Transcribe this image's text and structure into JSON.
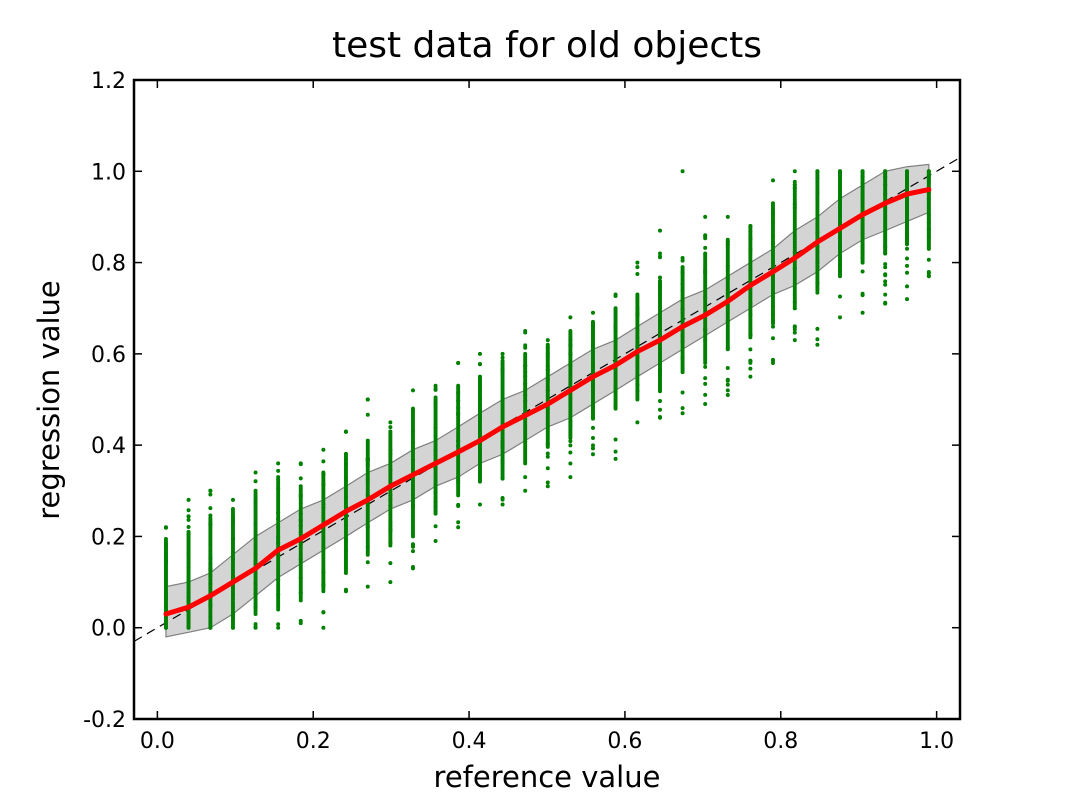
{
  "chart_data": {
    "type": "scatter",
    "title": "test data for old objects",
    "xlabel": "reference value",
    "ylabel": "regression value",
    "xlim": [
      -0.03,
      1.03
    ],
    "ylim": [
      -0.2,
      1.2
    ],
    "x_ticks": [
      0.0,
      0.2,
      0.4,
      0.6,
      0.8,
      1.0
    ],
    "x_tick_labels": [
      "0.0",
      "0.2",
      "0.4",
      "0.6",
      "0.8",
      "1.0"
    ],
    "y_ticks": [
      -0.2,
      0.0,
      0.2,
      0.4,
      0.6,
      0.8,
      1.0,
      1.2
    ],
    "y_tick_labels": [
      "-0.2",
      "0.0",
      "0.2",
      "0.4",
      "0.6",
      "0.8",
      "1.0",
      "1.2"
    ],
    "grid": false,
    "colors": {
      "points": "#008000",
      "mean_line": "#ff0000",
      "band_fill": "#b8b8b8",
      "band_edge": "#808080",
      "identity_line": "#000000"
    },
    "reference_line": {
      "x": [
        -0.03,
        1.03
      ],
      "y": [
        -0.03,
        1.03
      ],
      "style": "dashed"
    },
    "scatter_columns": [
      {
        "x": 0.011,
        "ymin": 0.0,
        "ymax": 0.22,
        "core_min": 0.0,
        "core_max": 0.19
      },
      {
        "x": 0.04,
        "ymin": 0.0,
        "ymax": 0.28,
        "core_min": 0.0,
        "core_max": 0.21
      },
      {
        "x": 0.068,
        "ymin": 0.0,
        "ymax": 0.3,
        "core_min": 0.0,
        "core_max": 0.24
      },
      {
        "x": 0.097,
        "ymin": 0.0,
        "ymax": 0.28,
        "core_min": 0.0,
        "core_max": 0.26
      },
      {
        "x": 0.126,
        "ymin": 0.0,
        "ymax": 0.34,
        "core_min": 0.03,
        "core_max": 0.3
      },
      {
        "x": 0.155,
        "ymin": 0.0,
        "ymax": 0.36,
        "core_min": 0.04,
        "core_max": 0.33
      },
      {
        "x": 0.184,
        "ymin": 0.01,
        "ymax": 0.36,
        "core_min": 0.06,
        "core_max": 0.31
      },
      {
        "x": 0.213,
        "ymin": 0.0,
        "ymax": 0.39,
        "core_min": 0.08,
        "core_max": 0.34
      },
      {
        "x": 0.242,
        "ymin": 0.08,
        "ymax": 0.43,
        "core_min": 0.12,
        "core_max": 0.38
      },
      {
        "x": 0.27,
        "ymin": 0.09,
        "ymax": 0.5,
        "core_min": 0.16,
        "core_max": 0.41
      },
      {
        "x": 0.299,
        "ymin": 0.1,
        "ymax": 0.45,
        "core_min": 0.18,
        "core_max": 0.43
      },
      {
        "x": 0.328,
        "ymin": 0.13,
        "ymax": 0.52,
        "core_min": 0.2,
        "core_max": 0.48
      },
      {
        "x": 0.357,
        "ymin": 0.19,
        "ymax": 0.53,
        "core_min": 0.25,
        "core_max": 0.5
      },
      {
        "x": 0.386,
        "ymin": 0.22,
        "ymax": 0.58,
        "core_min": 0.29,
        "core_max": 0.53
      },
      {
        "x": 0.414,
        "ymin": 0.27,
        "ymax": 0.6,
        "core_min": 0.32,
        "core_max": 0.55
      },
      {
        "x": 0.443,
        "ymin": 0.27,
        "ymax": 0.6,
        "core_min": 0.33,
        "core_max": 0.58
      },
      {
        "x": 0.472,
        "ymin": 0.3,
        "ymax": 0.65,
        "core_min": 0.36,
        "core_max": 0.6
      },
      {
        "x": 0.501,
        "ymin": 0.31,
        "ymax": 0.63,
        "core_min": 0.4,
        "core_max": 0.62
      },
      {
        "x": 0.53,
        "ymin": 0.33,
        "ymax": 0.68,
        "core_min": 0.42,
        "core_max": 0.65
      },
      {
        "x": 0.559,
        "ymin": 0.38,
        "ymax": 0.69,
        "core_min": 0.46,
        "core_max": 0.67
      },
      {
        "x": 0.588,
        "ymin": 0.37,
        "ymax": 0.73,
        "core_min": 0.48,
        "core_max": 0.7
      },
      {
        "x": 0.616,
        "ymin": 0.45,
        "ymax": 0.8,
        "core_min": 0.5,
        "core_max": 0.73
      },
      {
        "x": 0.645,
        "ymin": 0.46,
        "ymax": 0.82,
        "core_min": 0.52,
        "core_max": 0.76
      },
      {
        "x": 0.674,
        "ymin": 0.47,
        "ymax": 0.81,
        "core_min": 0.56,
        "core_max": 0.79
      },
      {
        "x": 0.703,
        "ymin": 0.49,
        "ymax": 0.86,
        "core_min": 0.58,
        "core_max": 0.82
      },
      {
        "x": 0.732,
        "ymin": 0.51,
        "ymax": 0.9,
        "core_min": 0.61,
        "core_max": 0.85
      },
      {
        "x": 0.761,
        "ymin": 0.55,
        "ymax": 0.88,
        "core_min": 0.64,
        "core_max": 0.88
      },
      {
        "x": 0.79,
        "ymin": 0.58,
        "ymax": 0.98,
        "core_min": 0.67,
        "core_max": 0.93
      },
      {
        "x": 0.818,
        "ymin": 0.63,
        "ymax": 1.0,
        "core_min": 0.7,
        "core_max": 0.97
      },
      {
        "x": 0.847,
        "ymin": 0.62,
        "ymax": 1.0,
        "core_min": 0.74,
        "core_max": 1.0
      },
      {
        "x": 0.876,
        "ymin": 0.68,
        "ymax": 1.0,
        "core_min": 0.77,
        "core_max": 1.0
      },
      {
        "x": 0.905,
        "ymin": 0.69,
        "ymax": 1.0,
        "core_min": 0.8,
        "core_max": 1.0
      },
      {
        "x": 0.934,
        "ymin": 0.71,
        "ymax": 1.0,
        "core_min": 0.82,
        "core_max": 1.0
      },
      {
        "x": 0.962,
        "ymin": 0.72,
        "ymax": 1.0,
        "core_min": 0.84,
        "core_max": 1.0
      },
      {
        "x": 0.99,
        "ymin": 0.77,
        "ymax": 1.0,
        "core_min": 0.83,
        "core_max": 1.0
      }
    ],
    "outlier_points": [
      {
        "x": 0.674,
        "y": 1.0
      },
      {
        "x": 0.703,
        "y": 0.9
      },
      {
        "x": 0.645,
        "y": 0.87
      },
      {
        "x": 0.27,
        "y": 0.5
      },
      {
        "x": 0.386,
        "y": 0.58
      },
      {
        "x": 0.068,
        "y": 0.3
      }
    ],
    "series": [
      {
        "name": "",
        "type": "line",
        "color": "#ff0000",
        "x": [
          0.011,
          0.04,
          0.068,
          0.097,
          0.126,
          0.155,
          0.184,
          0.213,
          0.242,
          0.27,
          0.299,
          0.328,
          0.357,
          0.386,
          0.414,
          0.443,
          0.472,
          0.501,
          0.53,
          0.559,
          0.588,
          0.616,
          0.645,
          0.674,
          0.703,
          0.732,
          0.761,
          0.79,
          0.818,
          0.847,
          0.876,
          0.905,
          0.934,
          0.962,
          0.99
        ],
        "y": [
          0.03,
          0.045,
          0.07,
          0.1,
          0.13,
          0.17,
          0.195,
          0.225,
          0.255,
          0.28,
          0.31,
          0.335,
          0.36,
          0.385,
          0.41,
          0.44,
          0.465,
          0.49,
          0.52,
          0.55,
          0.575,
          0.605,
          0.63,
          0.66,
          0.685,
          0.715,
          0.75,
          0.78,
          0.81,
          0.845,
          0.875,
          0.905,
          0.93,
          0.95,
          0.96
        ]
      }
    ],
    "band": {
      "x": [
        0.011,
        0.04,
        0.068,
        0.097,
        0.126,
        0.155,
        0.184,
        0.213,
        0.242,
        0.27,
        0.299,
        0.328,
        0.357,
        0.386,
        0.414,
        0.443,
        0.472,
        0.501,
        0.53,
        0.559,
        0.588,
        0.616,
        0.645,
        0.674,
        0.703,
        0.732,
        0.761,
        0.79,
        0.818,
        0.847,
        0.876,
        0.905,
        0.934,
        0.962,
        0.99
      ],
      "lower": [
        -0.02,
        -0.01,
        0.0,
        0.03,
        0.07,
        0.11,
        0.14,
        0.17,
        0.2,
        0.23,
        0.26,
        0.28,
        0.31,
        0.33,
        0.36,
        0.38,
        0.41,
        0.44,
        0.46,
        0.49,
        0.52,
        0.55,
        0.58,
        0.61,
        0.64,
        0.67,
        0.7,
        0.73,
        0.75,
        0.78,
        0.82,
        0.85,
        0.87,
        0.89,
        0.91
      ],
      "upper": [
        0.09,
        0.1,
        0.12,
        0.16,
        0.2,
        0.23,
        0.26,
        0.28,
        0.31,
        0.34,
        0.36,
        0.39,
        0.41,
        0.44,
        0.47,
        0.5,
        0.52,
        0.55,
        0.58,
        0.61,
        0.63,
        0.66,
        0.69,
        0.72,
        0.74,
        0.77,
        0.8,
        0.83,
        0.87,
        0.9,
        0.94,
        0.97,
        1.0,
        1.01,
        1.015
      ]
    }
  }
}
